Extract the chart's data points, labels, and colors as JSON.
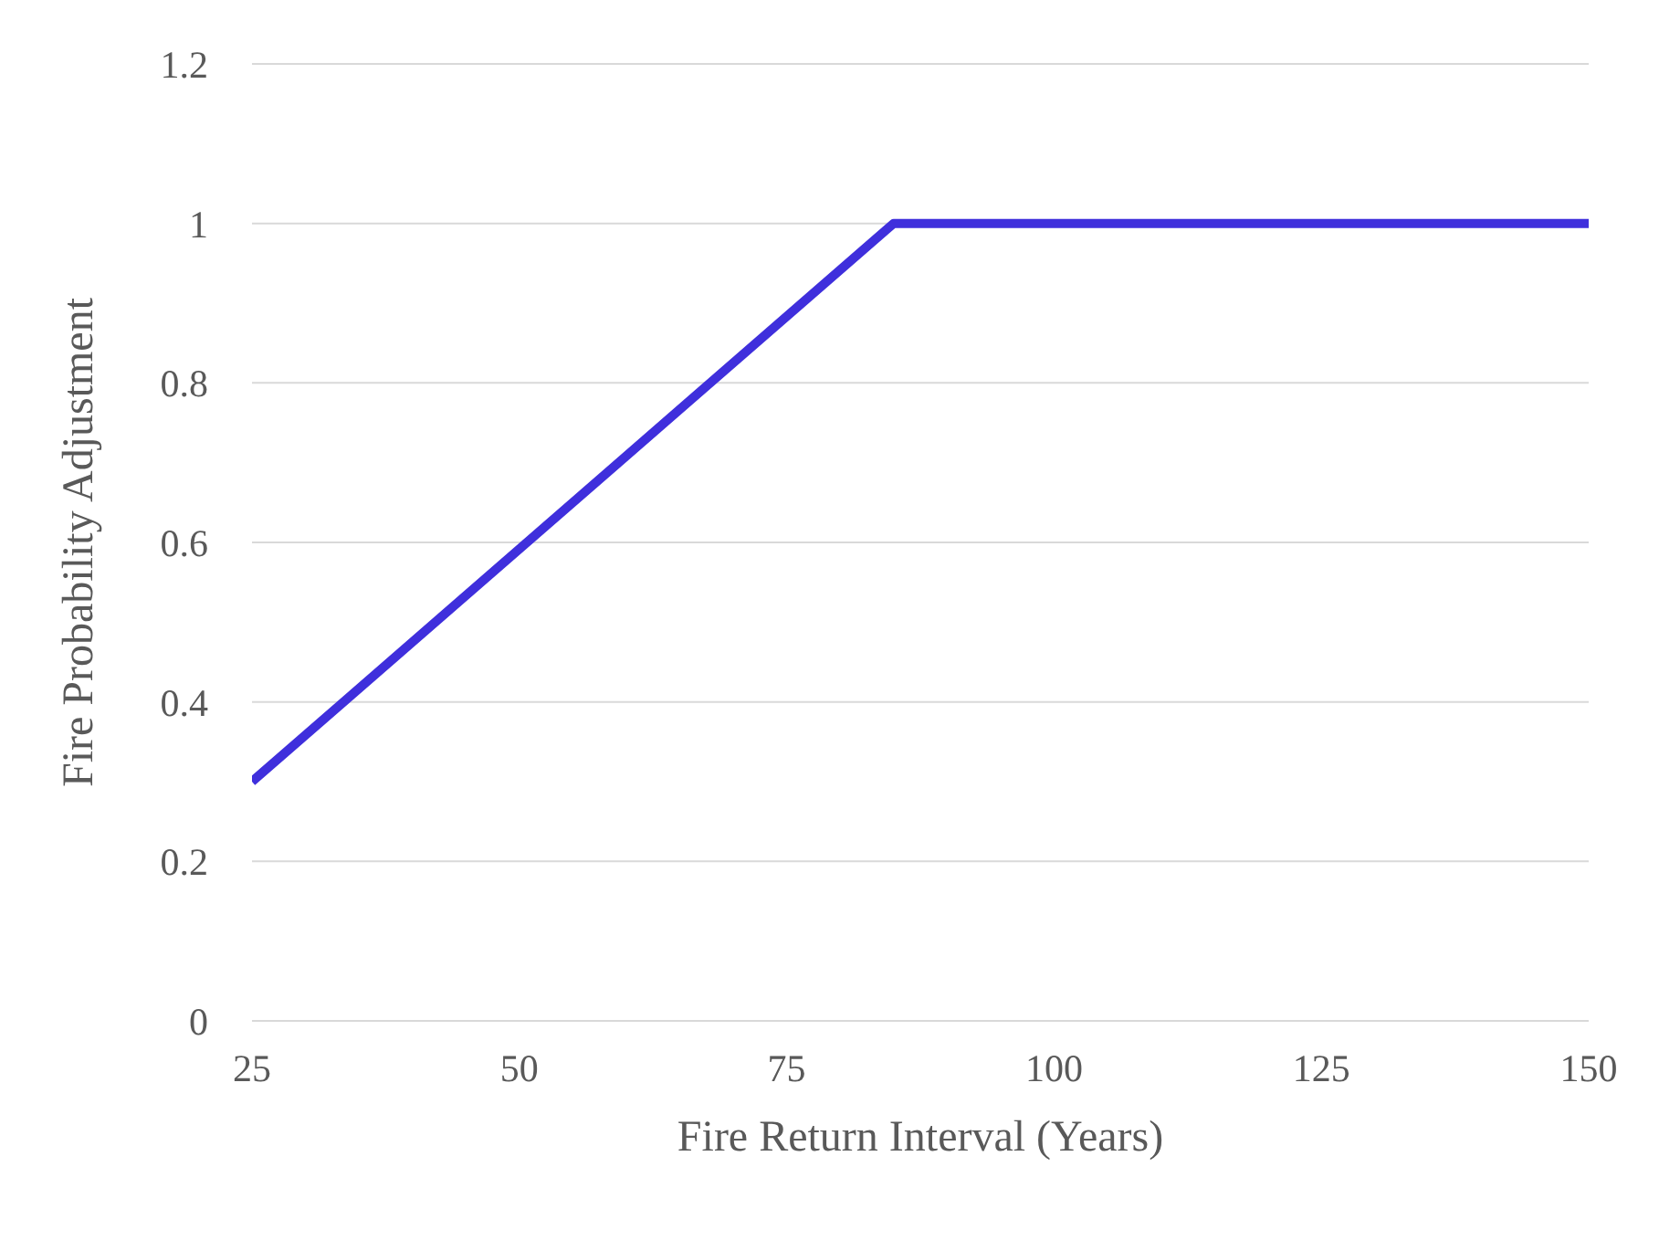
{
  "chart_data": {
    "type": "line",
    "xlabel": "Fire Return Interval (Years)",
    "ylabel": "Fire Probability Adjustment",
    "x": [
      25,
      85,
      150
    ],
    "series": [
      {
        "color": "#3f2fdc",
        "values": [
          0.3,
          1,
          1
        ]
      }
    ],
    "xlim": [
      25,
      150
    ],
    "xticks": [
      25,
      50,
      75,
      100,
      125,
      150
    ],
    "ylim": [
      0,
      1.2
    ],
    "yticks": [
      0,
      0.2,
      0.4,
      0.6,
      0.8,
      1,
      1.2
    ],
    "grid": "y",
    "legend": false,
    "marker": "none",
    "line_style": "solid"
  }
}
